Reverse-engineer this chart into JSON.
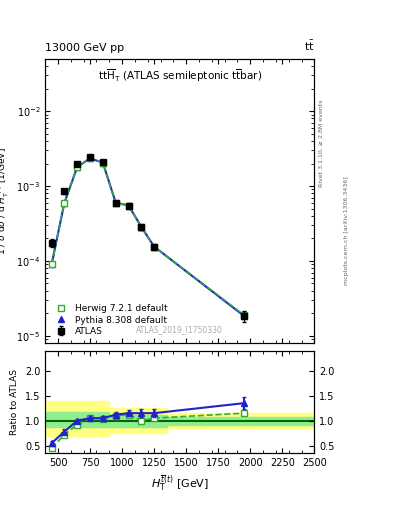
{
  "atlas_x": [
    450,
    550,
    650,
    750,
    850,
    950,
    1050,
    1150,
    1250,
    1950
  ],
  "atlas_y": [
    0.000175,
    0.00085,
    0.00195,
    0.00245,
    0.0021,
    0.0006,
    0.00055,
    0.00028,
    0.000155,
    1.85e-05
  ],
  "atlas_yerr": [
    2e-05,
    6e-05,
    0.0001,
    0.00012,
    0.00011,
    4e-05,
    3.5e-05,
    2e-05,
    1.2e-05,
    3e-06
  ],
  "herwig_x": [
    450,
    550,
    650,
    750,
    850,
    950,
    1050,
    1150,
    1250,
    1950
  ],
  "herwig_y": [
    9e-05,
    0.0006,
    0.0018,
    0.00235,
    0.00205,
    0.0006,
    0.00055,
    0.000285,
    0.000155,
    1.9e-05
  ],
  "pythia_x": [
    450,
    550,
    650,
    750,
    850,
    950,
    1050,
    1150,
    1250,
    1950
  ],
  "pythia_y": [
    9e-05,
    0.0006,
    0.0018,
    0.00235,
    0.00205,
    0.0006,
    0.00055,
    0.000285,
    0.000155,
    1.85e-05
  ],
  "ratio_herwig_x": [
    450,
    550,
    650,
    750,
    850,
    950,
    1050,
    1150,
    1250,
    1950
  ],
  "ratio_herwig_y": [
    0.45,
    0.72,
    0.92,
    1.05,
    1.04,
    1.1,
    1.12,
    1.0,
    1.05,
    1.15
  ],
  "ratio_pythia_x": [
    450,
    550,
    650,
    750,
    850,
    950,
    1050,
    1150,
    1250,
    1950
  ],
  "ratio_pythia_y": [
    0.55,
    0.78,
    1.0,
    1.05,
    1.05,
    1.12,
    1.15,
    1.15,
    1.15,
    1.35
  ],
  "ratio_pythia_yerr": [
    0.05,
    0.05,
    0.04,
    0.04,
    0.04,
    0.06,
    0.06,
    0.08,
    0.08,
    0.12
  ],
  "xlim": [
    400,
    2500
  ],
  "ylim_main": [
    8e-06,
    0.05
  ],
  "ylim_ratio": [
    0.35,
    2.4
  ],
  "color_atlas": "#000000",
  "color_herwig": "#33aa33",
  "color_pythia": "#2222cc",
  "color_yellow": "#ffff80",
  "color_green": "#90ee90",
  "color_ref_line": "#006600",
  "right_label_top": "Rivet 3.1.10, ≥ 2.8M events",
  "right_label_bot": "mcplots.cern.ch [arXiv:1306.3436]",
  "watermark": "ATLAS_2019_I1750330"
}
